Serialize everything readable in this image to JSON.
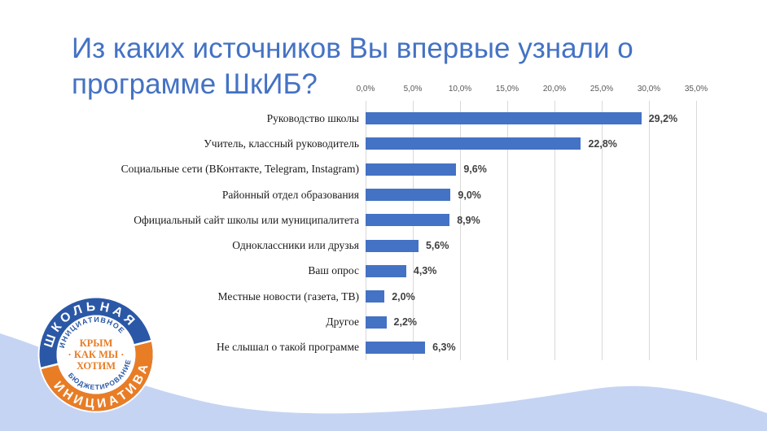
{
  "slide": {
    "title": "Из каких источников Вы впервые узнали о программе ШкИБ?",
    "title_color": "#4472c4",
    "background_color": "#ffffff",
    "wave_color": "#c6d4f3"
  },
  "chart_data": {
    "type": "bar",
    "orientation": "horizontal",
    "title": "",
    "xlabel": "",
    "ylabel": "",
    "xlim": [
      0,
      35
    ],
    "axis_position": "top",
    "grid": true,
    "categories": [
      "Руководство школы",
      "Учитель, классный руководитель",
      "Социальные сети (ВКонтакте, Telegram, Instagram)",
      "Районный отдел образования",
      "Официальный сайт школы или муниципалитета",
      "Одноклассники или друзья",
      "Ваш опрос",
      "Местные новости (газета, ТВ)",
      "Другое",
      "Не слышал о такой программе"
    ],
    "values": [
      29.2,
      22.8,
      9.6,
      9.0,
      8.9,
      5.6,
      4.3,
      2.0,
      2.2,
      6.3
    ],
    "value_labels": [
      "29,2%",
      "22,8%",
      "9,6%",
      "9,0%",
      "8,9%",
      "5,6%",
      "4,3%",
      "2,0%",
      "2,2%",
      "6,3%"
    ],
    "x_ticks": [
      "0,0%",
      "5,0%",
      "10,0%",
      "15,0%",
      "20,0%",
      "25,0%",
      "30,0%",
      "35,0%"
    ],
    "bar_color": "#4472c4",
    "gridline_color": "#d9d9d9",
    "tick_color": "#595959",
    "value_label_color": "#404040"
  },
  "logo": {
    "ring_top_text": "ШКОЛЬНАЯ",
    "ring_bottom_text": "ИНИЦИАТИВА",
    "inner_top_text": "ИНИЦИАТИВНОЕ",
    "inner_bottom_text": "БЮДЖЕТИРОВАНИЕ",
    "center_line1": "КРЫМ",
    "center_line2": "· КАК МЫ ·",
    "center_line3": "ХОТИМ",
    "blue": "#2b58a6",
    "orange": "#e87d26"
  }
}
